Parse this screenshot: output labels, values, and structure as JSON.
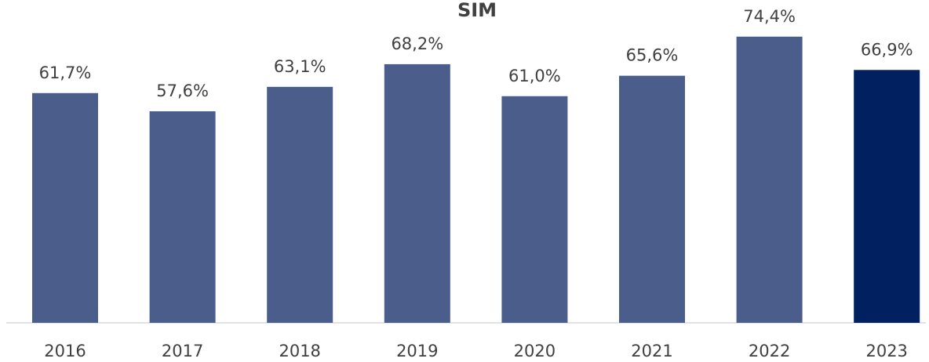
{
  "chart_data": {
    "type": "bar",
    "title": "SIM",
    "categories": [
      "2016",
      "2017",
      "2018",
      "2019",
      "2020",
      "2021",
      "2022",
      "2023"
    ],
    "values": [
      61.7,
      57.6,
      63.1,
      68.2,
      61.0,
      65.6,
      74.4,
      66.9
    ],
    "value_labels": [
      "61,7%",
      "57,6%",
      "63,1%",
      "68,2%",
      "61,0%",
      "65,6%",
      "74,4%",
      "66,9%"
    ],
    "colors": [
      "#4a5d8b",
      "#4a5d8b",
      "#4a5d8b",
      "#4a5d8b",
      "#4a5d8b",
      "#4a5d8b",
      "#4a5d8b",
      "#002060"
    ],
    "ylim": [
      10,
      80
    ]
  }
}
